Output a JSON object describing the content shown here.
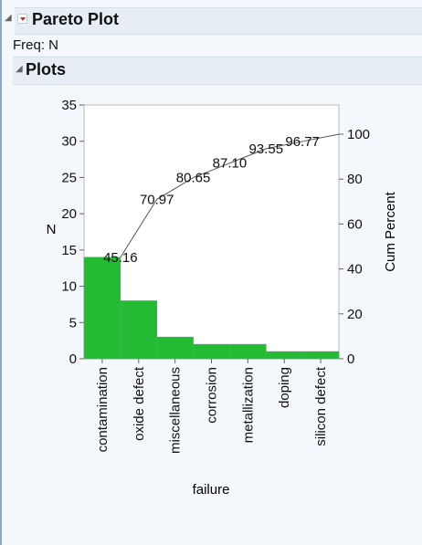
{
  "report": {
    "title": "Pareto Plot",
    "freq_label": "Freq: N",
    "plots_title": "Plots",
    "colors": {
      "bar": "#22bb33",
      "header_bg": "#e7edf4",
      "menu_arrow": "#dd2222"
    },
    "icons": [
      "disclosure-triangle-icon",
      "red-triangle-menu-icon"
    ]
  },
  "chart_data": {
    "type": "bar",
    "categories": [
      "contamination",
      "oxide defect",
      "miscellaneous",
      "corrosion",
      "metallization",
      "doping",
      "silicon defect"
    ],
    "values": [
      14,
      8,
      3,
      2,
      2,
      1,
      1
    ],
    "cum_percent": [
      45.16,
      70.97,
      80.65,
      87.1,
      93.55,
      96.77,
      100
    ],
    "cum_labels": [
      "45.16",
      "70.97",
      "80.65",
      "87.10",
      "93.55",
      "96.77"
    ],
    "xlabel": "failure",
    "ylabel": "N",
    "y2label": "Cum Percent",
    "ylim": [
      0,
      35
    ],
    "yticks": [
      "0",
      "5",
      "10",
      "15",
      "20",
      "25",
      "30",
      "35"
    ],
    "y2lim": [
      0,
      113.0
    ],
    "y2ticks": [
      "0",
      "20",
      "40",
      "60",
      "80",
      "100"
    ],
    "grid": false
  }
}
